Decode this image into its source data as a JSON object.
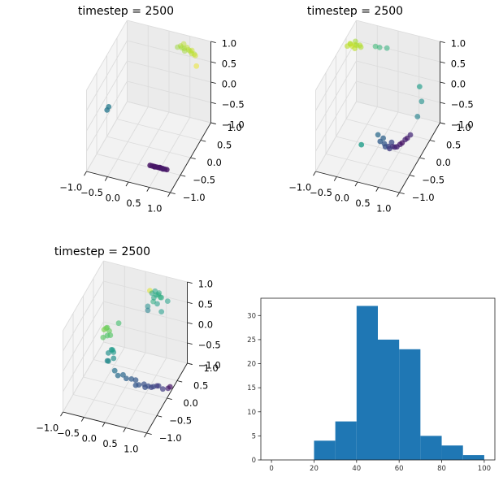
{
  "chart_data": [
    {
      "type": "scatter",
      "projection": "3d",
      "title": "timestep = 2500",
      "xticks": [
        "−1.0",
        "−0.5",
        "0.0",
        "0.5",
        "1.0"
      ],
      "yticks": [
        "−1.0",
        "−0.5",
        "0.0",
        "0.5",
        "1.0"
      ],
      "zticks": [
        "−1.0",
        "−0.5",
        "0.0",
        "0.5",
        "1.0"
      ],
      "xlim": [
        -1,
        1
      ],
      "ylim": [
        -1,
        1
      ],
      "zlim": [
        -1,
        1
      ],
      "grid": true,
      "colormap": "viridis",
      "points": [
        [
          0.3,
          0.8,
          0.85,
          0.85
        ],
        [
          0.35,
          0.85,
          0.85,
          0.88
        ],
        [
          0.4,
          0.8,
          0.86,
          0.86
        ],
        [
          0.45,
          0.82,
          0.84,
          0.87
        ],
        [
          0.5,
          0.85,
          0.85,
          0.9
        ],
        [
          0.55,
          0.83,
          0.82,
          0.89
        ],
        [
          0.6,
          0.8,
          0.83,
          0.88
        ],
        [
          0.65,
          0.78,
          0.8,
          0.9
        ],
        [
          0.7,
          0.8,
          0.78,
          0.87
        ],
        [
          0.4,
          0.9,
          0.87,
          0.9
        ],
        [
          0.48,
          0.78,
          0.82,
          0.86
        ],
        [
          0.62,
          0.85,
          0.81,
          0.92
        ],
        [
          0.8,
          0.7,
          0.6,
          0.97
        ],
        [
          0.75,
          0.75,
          0.8,
          0.93
        ],
        [
          -0.85,
          -0.3,
          -0.05,
          0.4
        ],
        [
          -0.82,
          -0.28,
          0.02,
          0.42
        ],
        [
          0.3,
          -0.55,
          -0.9,
          0.05
        ],
        [
          0.35,
          -0.55,
          -0.9,
          0.06
        ],
        [
          0.4,
          -0.55,
          -0.9,
          0.04
        ],
        [
          0.45,
          -0.55,
          -0.9,
          0.07
        ],
        [
          0.5,
          -0.55,
          -0.9,
          0.05
        ],
        [
          0.55,
          -0.55,
          -0.9,
          0.06
        ],
        [
          0.6,
          -0.55,
          -0.9,
          0.05
        ],
        [
          0.65,
          -0.55,
          -0.9,
          0.08
        ],
        [
          0.7,
          -0.55,
          -0.9,
          0.05
        ],
        [
          0.42,
          -0.58,
          -0.88,
          0.06
        ],
        [
          0.52,
          -0.52,
          -0.92,
          0.05
        ],
        [
          0.62,
          -0.58,
          -0.88,
          0.07
        ]
      ]
    },
    {
      "type": "scatter",
      "projection": "3d",
      "title": "timestep = 2500",
      "xticks": [
        "−1.0",
        "−0.5",
        "0.0",
        "0.5",
        "1.0"
      ],
      "yticks": [
        "−1.0",
        "−0.5",
        "0.0",
        "0.5",
        "1.0"
      ],
      "zticks": [
        "−1.0",
        "−0.5",
        "0.0",
        "0.5",
        "1.0"
      ],
      "xlim": [
        -1,
        1
      ],
      "ylim": [
        -1,
        1
      ],
      "zlim": [
        -1,
        1
      ],
      "grid": true,
      "colormap": "viridis",
      "points": [
        [
          -0.9,
          0.35,
          0.95,
          0.9
        ],
        [
          -0.85,
          0.4,
          0.97,
          0.88
        ],
        [
          -0.8,
          0.38,
          0.95,
          0.92
        ],
        [
          -0.75,
          0.42,
          0.96,
          0.9
        ],
        [
          -0.7,
          0.4,
          0.98,
          0.87
        ],
        [
          -0.65,
          0.45,
          0.95,
          0.89
        ],
        [
          -0.88,
          0.45,
          0.93,
          0.91
        ],
        [
          -0.78,
          0.5,
          0.97,
          0.86
        ],
        [
          -0.72,
          0.35,
          0.94,
          0.9
        ],
        [
          -0.6,
          0.4,
          0.96,
          0.88
        ],
        [
          -0.3,
          0.5,
          0.97,
          0.68
        ],
        [
          -0.2,
          0.5,
          0.97,
          0.66
        ],
        [
          -0.05,
          0.55,
          0.95,
          0.64
        ],
        [
          0.9,
          0.2,
          0.55,
          0.55
        ],
        [
          0.9,
          0.3,
          0.1,
          0.5
        ],
        [
          0.85,
          0.2,
          -0.2,
          0.45
        ],
        [
          -0.2,
          -0.4,
          -0.65,
          0.55
        ],
        [
          0.1,
          -0.2,
          -0.5,
          0.35
        ],
        [
          0.2,
          -0.3,
          -0.55,
          0.3
        ],
        [
          0.3,
          -0.3,
          -0.58,
          0.28
        ],
        [
          0.35,
          -0.35,
          -0.6,
          0.25
        ],
        [
          0.4,
          -0.3,
          -0.62,
          0.2
        ],
        [
          0.45,
          -0.35,
          -0.62,
          0.18
        ],
        [
          0.5,
          -0.3,
          -0.6,
          0.15
        ],
        [
          0.55,
          -0.3,
          -0.6,
          0.12
        ],
        [
          0.6,
          -0.3,
          -0.58,
          0.1
        ],
        [
          0.65,
          -0.25,
          -0.55,
          0.08
        ],
        [
          0.7,
          -0.25,
          -0.5,
          0.05
        ],
        [
          0.75,
          -0.2,
          -0.45,
          0.1
        ],
        [
          0.8,
          -0.2,
          -0.4,
          0.08
        ],
        [
          0.85,
          -0.15,
          -0.35,
          0.12
        ],
        [
          0.25,
          -0.25,
          -0.5,
          0.32
        ],
        [
          0.45,
          -0.25,
          -0.55,
          0.22
        ]
      ]
    },
    {
      "type": "scatter",
      "projection": "3d",
      "title": "timestep = 2500",
      "xticks": [
        "−1.0",
        "−0.5",
        "0.0",
        "0.5",
        "1.0"
      ],
      "yticks": [
        "−1.0",
        "−0.5",
        "0.0",
        "0.5",
        "1.0"
      ],
      "zticks": [
        "−1.0",
        "−0.5",
        "0.0",
        "0.5",
        "1.0"
      ],
      "xlim": [
        -1,
        1
      ],
      "ylim": [
        -1,
        1
      ],
      "zlim": [
        -1,
        1
      ],
      "grid": true,
      "colormap": "viridis",
      "points": [
        [
          0.3,
          0.6,
          0.95,
          0.95
        ],
        [
          0.35,
          0.6,
          0.9,
          0.6
        ],
        [
          0.4,
          0.65,
          0.92,
          0.58
        ],
        [
          0.45,
          0.6,
          0.88,
          0.62
        ],
        [
          0.5,
          0.6,
          0.9,
          0.6
        ],
        [
          0.55,
          0.6,
          0.85,
          0.63
        ],
        [
          0.42,
          0.55,
          0.85,
          0.59
        ],
        [
          0.48,
          0.68,
          0.87,
          0.61
        ],
        [
          0.55,
          0.65,
          0.8,
          0.6
        ],
        [
          0.7,
          0.65,
          0.75,
          0.57
        ],
        [
          0.38,
          0.6,
          0.7,
          0.62
        ],
        [
          0.5,
          0.55,
          0.72,
          0.56
        ],
        [
          0.6,
          0.55,
          0.55,
          0.55
        ],
        [
          0.25,
          0.6,
          0.55,
          0.5
        ],
        [
          0.3,
          0.5,
          0.55,
          0.45
        ],
        [
          -0.6,
          0.2,
          0.1,
          0.8
        ],
        [
          -0.55,
          0.2,
          0.15,
          0.78
        ],
        [
          -0.5,
          0.25,
          0.05,
          0.76
        ],
        [
          -0.6,
          0.15,
          -0.05,
          0.74
        ],
        [
          -0.5,
          0.15,
          0.02,
          0.72
        ],
        [
          -0.55,
          0.25,
          0.12,
          0.75
        ],
        [
          -0.45,
          0.2,
          0.0,
          0.73
        ],
        [
          -0.3,
          0.3,
          0.25,
          0.7
        ],
        [
          -0.35,
          0.1,
          -0.25,
          0.55
        ],
        [
          -0.4,
          0.15,
          -0.3,
          0.52
        ],
        [
          -0.45,
          0.1,
          -0.35,
          0.5
        ],
        [
          -0.35,
          0.15,
          -0.35,
          0.53
        ],
        [
          -0.3,
          0.05,
          -0.4,
          0.5
        ],
        [
          -0.4,
          0.0,
          -0.45,
          0.48
        ],
        [
          -0.45,
          0.05,
          -0.5,
          0.46
        ],
        [
          -0.2,
          -0.1,
          -0.55,
          0.38
        ],
        [
          -0.1,
          -0.15,
          -0.6,
          0.36
        ],
        [
          0.0,
          -0.1,
          -0.6,
          0.34
        ],
        [
          0.1,
          -0.15,
          -0.62,
          0.32
        ],
        [
          0.2,
          -0.1,
          -0.65,
          0.3
        ],
        [
          0.3,
          -0.1,
          -0.65,
          0.28
        ],
        [
          0.4,
          -0.15,
          -0.7,
          0.27
        ],
        [
          0.5,
          -0.1,
          -0.7,
          0.25
        ],
        [
          0.6,
          -0.1,
          -0.72,
          0.24
        ],
        [
          0.7,
          -0.05,
          -0.75,
          0.23
        ],
        [
          0.8,
          0.0,
          -0.75,
          0.2
        ],
        [
          0.9,
          0.0,
          -0.8,
          0.18
        ],
        [
          1.0,
          0.05,
          -0.8,
          0.1
        ],
        [
          1.05,
          0.05,
          -0.75,
          0.05
        ],
        [
          0.35,
          -0.2,
          -0.68,
          0.28
        ],
        [
          0.55,
          -0.15,
          -0.72,
          0.25
        ],
        [
          0.65,
          -0.05,
          -0.78,
          0.2
        ],
        [
          0.75,
          0.02,
          -0.78,
          0.15
        ]
      ]
    },
    {
      "type": "bar",
      "histogram": true,
      "bin_edges": [
        20,
        30,
        40,
        50,
        60,
        70,
        80,
        90,
        100
      ],
      "values": [
        4,
        8,
        32,
        25,
        23,
        5,
        3,
        1
      ],
      "color": "#1f77b4",
      "xlim": [
        -5,
        105
      ],
      "ylim": [
        0,
        33.6
      ],
      "xticks": [
        0,
        20,
        40,
        60,
        80,
        100
      ],
      "yticks": [
        0,
        5,
        10,
        15,
        20,
        25,
        30
      ]
    }
  ]
}
